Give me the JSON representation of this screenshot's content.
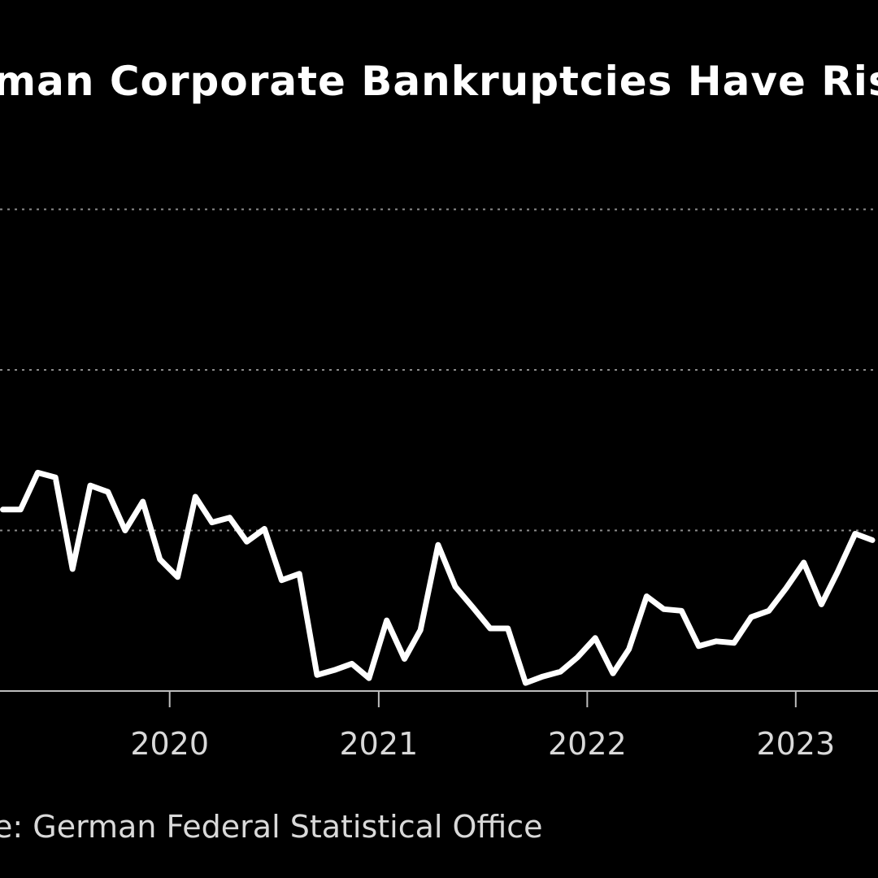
{
  "theme": {
    "background": "#000000",
    "line_color": "#ffffff",
    "grid_color": "#8c8c8c",
    "axis_color": "#bdbdbd",
    "text_color": "#ffffff",
    "tick_color": "#d9d9d9",
    "source_color": "#d9d9d9"
  },
  "chart_data": {
    "type": "line",
    "title": "man Corporate Bankruptcies Have Ris",
    "source": "e: German Federal Statistical Office",
    "x_ticks": [
      "2020",
      "2021",
      "2022",
      "2023"
    ],
    "x_tick_dates": [
      "2020-01-01",
      "2021-01-01",
      "2022-01-01",
      "2023-01-01"
    ],
    "x_range": [
      "2019-03-10",
      "2023-05-25"
    ],
    "y_range": [
      0,
      4
    ],
    "gridlines_y": [
      1,
      2,
      3
    ],
    "grid": "dotted horizontal",
    "series": [
      {
        "values": [
          [
            "2019-03-15",
            1.13
          ],
          [
            "2019-04-15",
            1.13
          ],
          [
            "2019-05-15",
            1.36
          ],
          [
            "2019-06-15",
            1.33
          ],
          [
            "2019-07-15",
            0.76
          ],
          [
            "2019-08-15",
            1.28
          ],
          [
            "2019-09-15",
            1.24
          ],
          [
            "2019-10-15",
            1.0
          ],
          [
            "2019-11-15",
            1.18
          ],
          [
            "2019-12-15",
            0.82
          ],
          [
            "2020-01-15",
            0.71
          ],
          [
            "2020-02-15",
            1.21
          ],
          [
            "2020-03-15",
            1.05
          ],
          [
            "2020-04-15",
            1.08
          ],
          [
            "2020-05-15",
            0.93
          ],
          [
            "2020-06-15",
            1.01
          ],
          [
            "2020-07-15",
            0.69
          ],
          [
            "2020-08-15",
            0.73
          ],
          [
            "2020-09-15",
            0.1
          ],
          [
            "2020-10-15",
            0.13
          ],
          [
            "2020-11-15",
            0.17
          ],
          [
            "2020-12-15",
            0.08
          ],
          [
            "2021-01-15",
            0.44
          ],
          [
            "2021-02-15",
            0.2
          ],
          [
            "2021-03-15",
            0.38
          ],
          [
            "2021-04-15",
            0.91
          ],
          [
            "2021-05-15",
            0.65
          ],
          [
            "2021-06-15",
            0.52
          ],
          [
            "2021-07-15",
            0.39
          ],
          [
            "2021-08-15",
            0.39
          ],
          [
            "2021-09-15",
            0.05
          ],
          [
            "2021-10-15",
            0.09
          ],
          [
            "2021-11-15",
            0.12
          ],
          [
            "2021-12-15",
            0.21
          ],
          [
            "2022-01-15",
            0.33
          ],
          [
            "2022-02-15",
            0.11
          ],
          [
            "2022-03-15",
            0.26
          ],
          [
            "2022-04-15",
            0.59
          ],
          [
            "2022-05-15",
            0.51
          ],
          [
            "2022-06-15",
            0.5
          ],
          [
            "2022-07-15",
            0.28
          ],
          [
            "2022-08-15",
            0.31
          ],
          [
            "2022-09-15",
            0.3
          ],
          [
            "2022-10-15",
            0.46
          ],
          [
            "2022-11-15",
            0.5
          ],
          [
            "2022-12-15",
            0.64
          ],
          [
            "2023-01-15",
            0.8
          ],
          [
            "2023-02-15",
            0.54
          ],
          [
            "2023-03-15",
            0.74
          ],
          [
            "2023-04-15",
            0.98
          ],
          [
            "2023-05-15",
            0.94
          ]
        ]
      }
    ]
  }
}
